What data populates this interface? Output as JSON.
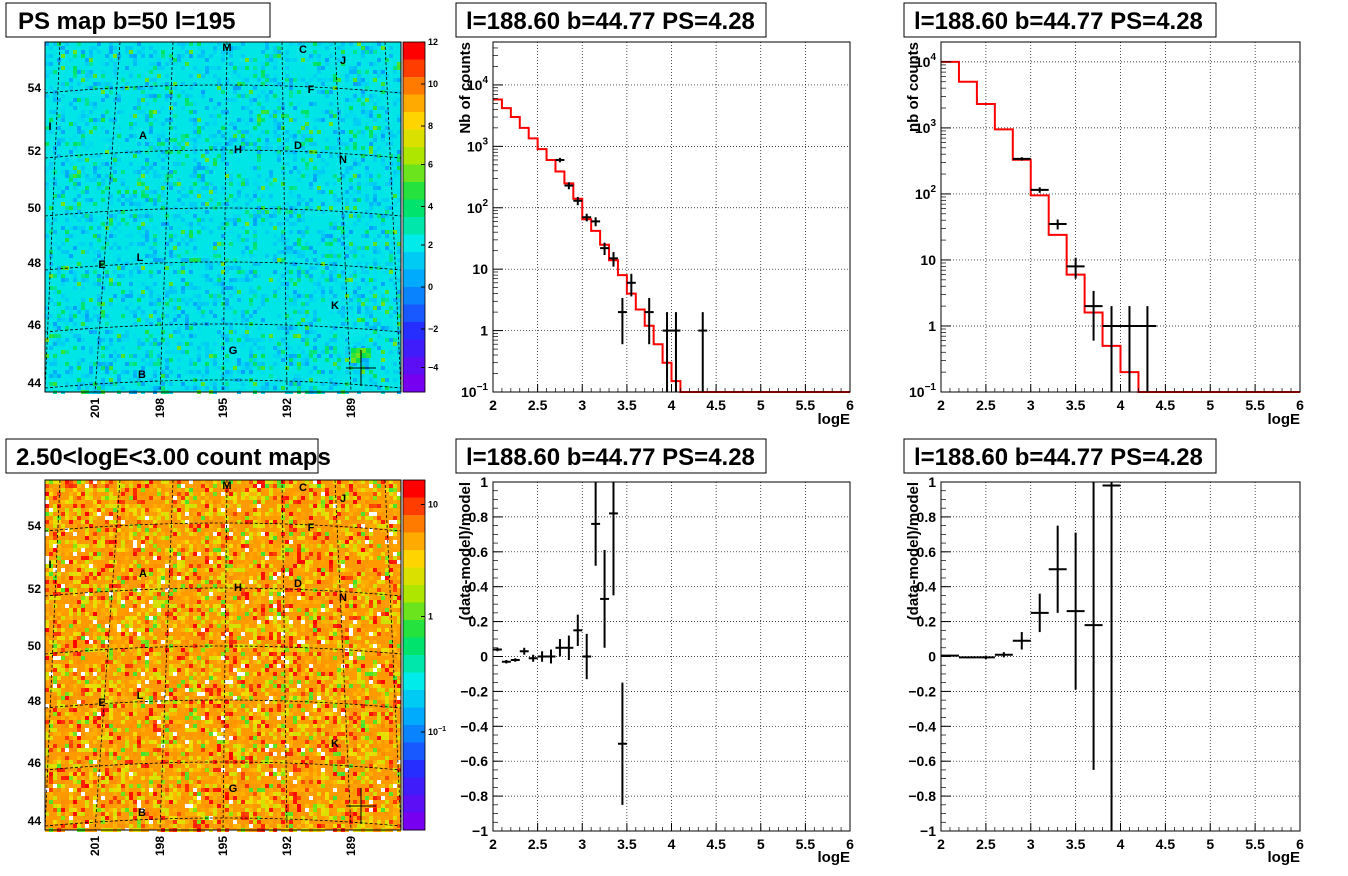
{
  "colors": {
    "model_line": "#ff0000",
    "data_points": "#000000",
    "map_grid": "#000000"
  },
  "chart_data": [
    {
      "id": "ps-map",
      "type": "heatmap",
      "title": "PS map b=50 l=195",
      "colormap": "rainbow",
      "z_ticks": [
        "12",
        "10",
        "8",
        "6",
        "4",
        "2",
        "0",
        "-2",
        "-4"
      ],
      "zlim": [
        -5,
        12
      ],
      "background_level": 0,
      "y_ticks": [
        "54",
        "52",
        "50",
        "48",
        "46",
        "44"
      ],
      "x_ticks": [
        "201",
        "198",
        "195",
        "192",
        "189"
      ],
      "sources": [
        "M",
        "C",
        "J",
        "F",
        "I",
        "A",
        "H",
        "D",
        "N",
        "E",
        "L",
        "K",
        "G",
        "B"
      ],
      "marker": "+",
      "grid": true
    },
    {
      "id": "counts-sel",
      "type": "line",
      "title": "l=188.60 b=44.77 PS=4.28",
      "xlabel": "logE",
      "ylabel": "Nb of counts",
      "yscale": "log",
      "xlim": [
        2,
        6
      ],
      "ylim": [
        0.1,
        50000
      ],
      "x_ticks": [
        "2",
        "2.5",
        "3",
        "3.5",
        "4",
        "4.5",
        "5",
        "5.5",
        "6"
      ],
      "y_ticks": [
        "10^4",
        "10^3",
        "10^2",
        "10",
        "1",
        "10^-1"
      ],
      "grid": true,
      "model": {
        "edges": [
          2.0,
          2.1,
          2.2,
          2.3,
          2.4,
          2.5,
          2.6,
          2.7,
          2.8,
          2.9,
          3.0,
          3.1,
          3.2,
          3.3,
          3.4,
          3.5,
          3.6,
          3.7,
          3.8,
          3.9,
          4.0,
          4.1,
          4.2,
          4.3,
          4.4,
          4.5,
          4.6,
          4.7,
          4.8,
          4.9,
          5.0,
          5.1,
          5.2,
          5.3,
          5.4,
          5.5,
          5.6,
          5.7,
          5.8,
          5.9,
          6.0
        ],
        "values": [
          5800,
          4200,
          3000,
          2000,
          1350,
          900,
          600,
          390,
          250,
          140,
          65,
          42,
          25,
          14,
          8,
          4,
          2.2,
          1.2,
          0.6,
          0.3,
          0.15,
          0.1,
          0.1,
          0.1,
          0.1,
          0.1,
          0.1,
          0.1,
          0.1,
          0.1,
          0.1,
          0.1,
          0.1,
          0.1,
          0.1,
          0.1,
          0.1,
          0.1,
          0.1,
          0.1
        ]
      },
      "points": [
        {
          "x": 2.75,
          "y": 600,
          "xerr": 0.05,
          "ylo": 550,
          "yhi": 650
        },
        {
          "x": 2.85,
          "y": 230,
          "xerr": 0.05,
          "ylo": 200,
          "yhi": 260
        },
        {
          "x": 2.95,
          "y": 130,
          "xerr": 0.05,
          "ylo": 110,
          "yhi": 150
        },
        {
          "x": 3.05,
          "y": 70,
          "xerr": 0.05,
          "ylo": 60,
          "yhi": 80
        },
        {
          "x": 3.15,
          "y": 60,
          "xerr": 0.05,
          "ylo": 50,
          "yhi": 70
        },
        {
          "x": 3.25,
          "y": 22,
          "xerr": 0.05,
          "ylo": 17,
          "yhi": 27
        },
        {
          "x": 3.35,
          "y": 15,
          "xerr": 0.05,
          "ylo": 11,
          "yhi": 19
        },
        {
          "x": 3.45,
          "y": 2,
          "xerr": 0.05,
          "ylo": 0.6,
          "yhi": 3.4
        },
        {
          "x": 3.55,
          "y": 6,
          "xerr": 0.05,
          "ylo": 3.6,
          "yhi": 8.4
        },
        {
          "x": 3.75,
          "y": 2,
          "xerr": 0.05,
          "ylo": 0.6,
          "yhi": 3.4
        },
        {
          "x": 3.95,
          "y": 1,
          "xerr": 0.05,
          "ylo": 0.1,
          "yhi": 2
        },
        {
          "x": 4.05,
          "y": 1,
          "xerr": 0.05,
          "ylo": 0.1,
          "yhi": 2
        },
        {
          "x": 4.35,
          "y": 1,
          "xerr": 0.05,
          "ylo": 0.1,
          "yhi": 2
        }
      ]
    },
    {
      "id": "counts-all",
      "type": "line",
      "title": "l=188.60 b=44.77 PS=4.28",
      "xlabel": "logE",
      "ylabel": "nb of counts",
      "yscale": "log",
      "xlim": [
        2,
        6
      ],
      "ylim": [
        0.1,
        20000
      ],
      "x_ticks": [
        "2",
        "2.5",
        "3",
        "3.5",
        "4",
        "4.5",
        "5",
        "5.5",
        "6"
      ],
      "y_ticks": [
        "10^4",
        "10^3",
        "10^2",
        "10",
        "1",
        "10^-1"
      ],
      "grid": true,
      "model": {
        "edges": [
          2.0,
          2.2,
          2.4,
          2.6,
          2.8,
          3.0,
          3.2,
          3.4,
          3.6,
          3.8,
          4.0,
          4.2,
          4.4,
          4.6,
          4.8,
          5.0,
          5.2,
          5.4,
          5.6,
          5.8,
          6.0
        ],
        "values": [
          10000,
          5000,
          2300,
          950,
          330,
          95,
          24,
          6,
          1.6,
          0.5,
          0.2,
          0.1,
          0.1,
          0.1,
          0.1,
          0.1,
          0.1,
          0.1,
          0.1,
          0.1
        ]
      },
      "points": [
        {
          "x": 2.9,
          "y": 340,
          "xerr": 0.1,
          "ylo": 320,
          "yhi": 360
        },
        {
          "x": 3.1,
          "y": 115,
          "xerr": 0.1,
          "ylo": 104,
          "yhi": 126
        },
        {
          "x": 3.3,
          "y": 35,
          "xerr": 0.1,
          "ylo": 29,
          "yhi": 41
        },
        {
          "x": 3.5,
          "y": 8,
          "xerr": 0.1,
          "ylo": 5.2,
          "yhi": 10.8
        },
        {
          "x": 3.7,
          "y": 2,
          "xerr": 0.1,
          "ylo": 0.6,
          "yhi": 3.4
        },
        {
          "x": 3.9,
          "y": 1,
          "xerr": 0.1,
          "ylo": 0.1,
          "yhi": 2
        },
        {
          "x": 4.1,
          "y": 1,
          "xerr": 0.1,
          "ylo": 0.1,
          "yhi": 2
        },
        {
          "x": 4.3,
          "y": 1,
          "xerr": 0.1,
          "ylo": 0.1,
          "yhi": 2
        }
      ]
    },
    {
      "id": "count-map",
      "type": "heatmap",
      "title": "2.50<logE<3.00 count maps",
      "colormap": "rainbow",
      "zscale": "log",
      "z_ticks": [
        "10",
        "1",
        "10^-1"
      ],
      "background_level": 5,
      "y_ticks": [
        "54",
        "52",
        "50",
        "48",
        "46",
        "44"
      ],
      "x_ticks": [
        "201",
        "198",
        "195",
        "192",
        "189"
      ],
      "sources": [
        "M",
        "C",
        "J",
        "F",
        "I",
        "A",
        "H",
        "D",
        "N",
        "E",
        "L",
        "K",
        "G",
        "B"
      ],
      "marker": "+",
      "grid": true
    },
    {
      "id": "resid-sel",
      "type": "scatter",
      "title": "l=188.60 b=44.77 PS=4.28",
      "xlabel": "logE",
      "ylabel": "(data-model)/model",
      "xlim": [
        2,
        6
      ],
      "ylim": [
        -1,
        1
      ],
      "x_ticks": [
        "2",
        "2.5",
        "3",
        "3.5",
        "4",
        "4.5",
        "5",
        "5.5",
        "6"
      ],
      "y_ticks": [
        "1",
        "0.8",
        "0.6",
        "0.4",
        "0.2",
        "0",
        "-0.2",
        "-0.4",
        "-0.6",
        "-0.8",
        "-1"
      ],
      "grid": true,
      "points": [
        {
          "x": 2.05,
          "y": 0.04,
          "xerr": 0.05,
          "ylo": 0.03,
          "yhi": 0.05
        },
        {
          "x": 2.15,
          "y": -0.03,
          "xerr": 0.05,
          "ylo": -0.04,
          "yhi": -0.02
        },
        {
          "x": 2.25,
          "y": -0.02,
          "xerr": 0.05,
          "ylo": -0.03,
          "yhi": -0.01
        },
        {
          "x": 2.35,
          "y": 0.03,
          "xerr": 0.05,
          "ylo": 0.01,
          "yhi": 0.05
        },
        {
          "x": 2.45,
          "y": -0.01,
          "xerr": 0.05,
          "ylo": -0.03,
          "yhi": 0.01
        },
        {
          "x": 2.55,
          "y": 0.0,
          "xerr": 0.05,
          "ylo": -0.03,
          "yhi": 0.03
        },
        {
          "x": 2.65,
          "y": 0.0,
          "xerr": 0.05,
          "ylo": -0.04,
          "yhi": 0.04
        },
        {
          "x": 2.75,
          "y": 0.05,
          "xerr": 0.05,
          "ylo": 0.0,
          "yhi": 0.1
        },
        {
          "x": 2.85,
          "y": 0.05,
          "xerr": 0.05,
          "ylo": -0.02,
          "yhi": 0.12
        },
        {
          "x": 2.95,
          "y": 0.15,
          "xerr": 0.05,
          "ylo": 0.06,
          "yhi": 0.24
        },
        {
          "x": 3.05,
          "y": 0.0,
          "xerr": 0.05,
          "ylo": -0.13,
          "yhi": 0.13
        },
        {
          "x": 3.15,
          "y": 0.76,
          "xerr": 0.05,
          "ylo": 0.52,
          "yhi": 1.0
        },
        {
          "x": 3.25,
          "y": 0.33,
          "xerr": 0.05,
          "ylo": 0.05,
          "yhi": 0.61
        },
        {
          "x": 3.35,
          "y": 0.82,
          "xerr": 0.05,
          "ylo": 0.35,
          "yhi": 1.0
        },
        {
          "x": 3.45,
          "y": -0.5,
          "xerr": 0.05,
          "ylo": -0.85,
          "yhi": -0.15
        }
      ]
    },
    {
      "id": "resid-all",
      "type": "scatter",
      "title": "l=188.60 b=44.77 PS=4.28",
      "xlabel": "logE",
      "ylabel": "(data-model)/model",
      "xlim": [
        2,
        6
      ],
      "ylim": [
        -1,
        1
      ],
      "x_ticks": [
        "2",
        "2.5",
        "3",
        "3.5",
        "4",
        "4.5",
        "5",
        "5.5",
        "6"
      ],
      "y_ticks": [
        "1",
        "0.8",
        "0.6",
        "0.4",
        "0.2",
        "0",
        "-0.2",
        "-0.4",
        "-0.6",
        "-0.8",
        "-1"
      ],
      "grid": true,
      "points": [
        {
          "x": 2.1,
          "y": 0.005,
          "xerr": 0.1,
          "ylo": 0.0,
          "yhi": 0.01
        },
        {
          "x": 2.3,
          "y": -0.005,
          "xerr": 0.1,
          "ylo": -0.01,
          "yhi": 0.0
        },
        {
          "x": 2.5,
          "y": -0.005,
          "xerr": 0.1,
          "ylo": -0.015,
          "yhi": 0.005
        },
        {
          "x": 2.7,
          "y": 0.01,
          "xerr": 0.1,
          "ylo": -0.005,
          "yhi": 0.025
        },
        {
          "x": 2.9,
          "y": 0.09,
          "xerr": 0.1,
          "ylo": 0.04,
          "yhi": 0.14
        },
        {
          "x": 3.1,
          "y": 0.25,
          "xerr": 0.1,
          "ylo": 0.14,
          "yhi": 0.36
        },
        {
          "x": 3.3,
          "y": 0.5,
          "xerr": 0.1,
          "ylo": 0.25,
          "yhi": 0.75
        },
        {
          "x": 3.5,
          "y": 0.26,
          "xerr": 0.1,
          "ylo": -0.19,
          "yhi": 0.71
        },
        {
          "x": 3.7,
          "y": 0.18,
          "xerr": 0.1,
          "ylo": -0.65,
          "yhi": 1.0
        },
        {
          "x": 3.9,
          "y": 0.98,
          "xerr": 0.1,
          "ylo": -1.0,
          "yhi": 1.0
        }
      ]
    }
  ]
}
